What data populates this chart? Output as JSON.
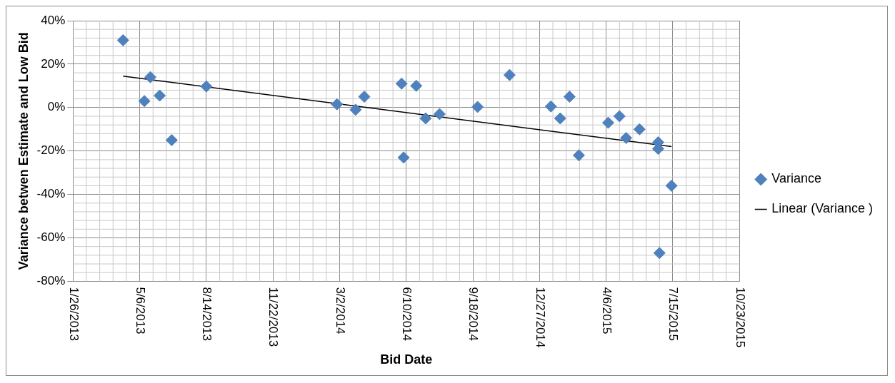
{
  "chart_data": {
    "type": "scatter",
    "xlabel": "Bid Date",
    "ylabel": "Variance betwen Estimate and Low Bid",
    "series": [
      {
        "name": "Variance",
        "type": "scatter",
        "color": "#4f81bd",
        "marker": "diamond",
        "x": [
          "2013-04-11",
          "2013-05-22",
          "2013-05-13",
          "2013-06-05",
          "2013-06-23",
          "2013-08-14",
          "2014-02-26",
          "2014-03-26",
          "2014-04-08",
          "2014-06-03",
          "2014-06-25",
          "2014-07-09",
          "2014-07-30",
          "2014-06-06",
          "2014-09-25",
          "2014-11-12",
          "2015-01-13",
          "2015-01-27",
          "2015-02-10",
          "2015-02-24",
          "2015-04-09",
          "2015-04-26",
          "2015-05-06",
          "2015-05-26",
          "2015-06-23",
          "2015-06-23",
          "2015-07-13",
          "2015-06-25"
        ],
        "values": [
          31,
          14,
          3,
          5.5,
          -15,
          9.7,
          1.5,
          -1,
          5,
          11,
          10,
          -5,
          -3,
          -23,
          0.3,
          15,
          0.5,
          -5,
          5,
          -22,
          -7,
          -4,
          -14,
          -10,
          -16,
          -19,
          -36,
          -67
        ]
      },
      {
        "name": "Linear (Variance )",
        "type": "line",
        "color": "#000000",
        "marker": "none",
        "line_style": "solid",
        "x": [
          "2013-04-11",
          "2015-07-13"
        ],
        "values": [
          14.5,
          -18
        ]
      }
    ],
    "xlim": [
      "2013-01-26",
      "2015-10-23"
    ],
    "xticks": [
      {
        "value": "2013-01-26",
        "label": "1/26/2013"
      },
      {
        "value": "2013-05-06",
        "label": "5/6/2013"
      },
      {
        "value": "2013-08-14",
        "label": "8/14/2013"
      },
      {
        "value": "2013-11-22",
        "label": "11/22/2013"
      },
      {
        "value": "2014-03-02",
        "label": "3/2/2014"
      },
      {
        "value": "2014-06-10",
        "label": "6/10/2014"
      },
      {
        "value": "2014-09-18",
        "label": "9/18/2014"
      },
      {
        "value": "2014-12-27",
        "label": "12/27/2014"
      },
      {
        "value": "2015-04-06",
        "label": "4/6/2015"
      },
      {
        "value": "2015-07-15",
        "label": "7/15/2015"
      },
      {
        "value": "2015-10-23",
        "label": "10/23/2015"
      }
    ],
    "ylim": [
      -80,
      40
    ],
    "yticks": [
      {
        "value": -80,
        "label": "-80%"
      },
      {
        "value": -60,
        "label": "-60%"
      },
      {
        "value": -40,
        "label": "-40%"
      },
      {
        "value": -20,
        "label": "-20%"
      },
      {
        "value": 0,
        "label": "0%"
      },
      {
        "value": 20,
        "label": "20%"
      },
      {
        "value": 40,
        "label": "40%"
      }
    ],
    "grid": true,
    "legend": "right"
  }
}
